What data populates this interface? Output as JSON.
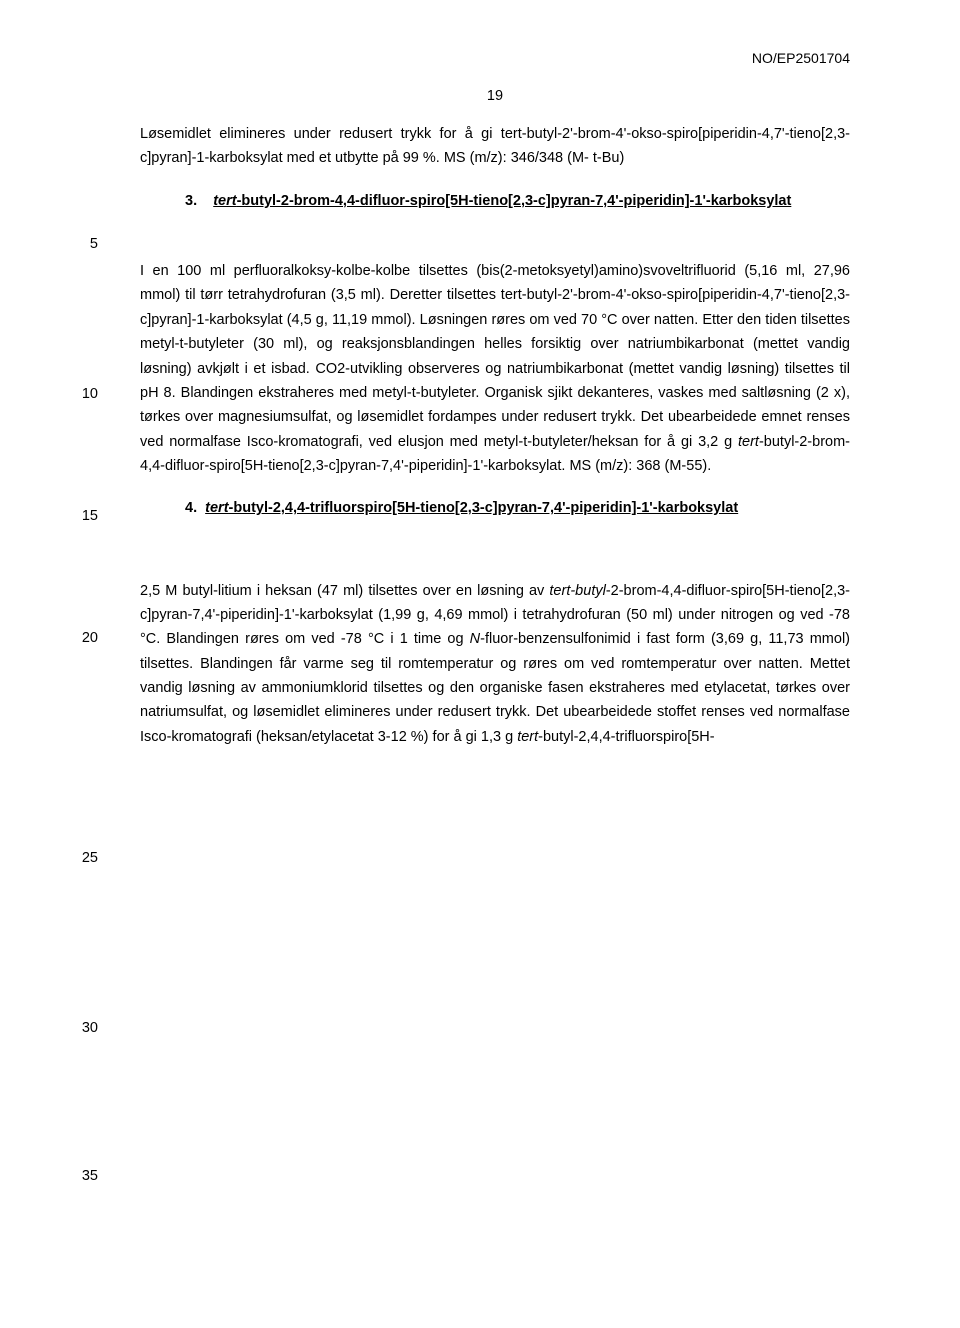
{
  "doc_id": "NO/EP2501704",
  "page_number": "19",
  "line5": "5",
  "line10": "10",
  "line15": "15",
  "line20": "20",
  "line25": "25",
  "line30": "30",
  "line35": "35",
  "p1": "Løsemidlet elimineres under redusert trykk for å gi tert-butyl-2'-brom-4'-okso-spiro[piperidin-4,7'-tieno[2,3-c]pyran]-1-karboksylat med et utbytte på 99 %. MS (m/z): 346/348 (M- t-Bu)",
  "sec3_num": "3.",
  "sec3_title_i": "tert",
  "sec3_title": "-butyl-2-brom-4,4-difluor-spiro[5H-tieno[2,3-c]pyran-7,4'-piperidin]-1'-karboksylat",
  "p2a": "I en 100 ml perfluoralkoksy-kolbe-kolbe tilsettes (bis(2-metoksyetyl)amino)svoveltrifluorid (5,16 ml, 27,96 mmol) til tørr tetrahydrofuran (3,5 ml). Deretter tilsettes tert-butyl-2'-brom-4'-okso-spiro[piperidin-4,7'-tieno[2,3-c]pyran]-1-karboksylat (4,5 g, 11,19 mmol). Løsningen røres om ved 70 °C over natten. Etter den tiden tilsettes metyl-t-butyleter (30 ml), og reaksjonsblandingen helles forsiktig over natriumbikarbonat (mettet vandig løsning) avkjølt i et isbad. CO2-utvikling observeres og natriumbikarbonat (mettet vandig løsning) tilsettes til pH 8. Blandingen ekstraheres med metyl-t-butyleter. Organisk sjikt dekanteres, vaskes med saltløsning (2 x), tørkes over magnesiumsulfat, og løsemidlet fordampes under redusert trykk. Det ubearbeidede emnet renses ved normalfase Isco-kromatografi, ved elusjon med metyl-t-butyleter/heksan for å gi 3,2 g ",
  "p2b_i": "tert",
  "p2b": "-butyl-2-brom-4,4-difluor-spiro[5H-tieno[2,3-c]pyran-7,4'-piperidin]-1'-karboksylat. MS (m/z): 368 (M-55).",
  "sec4_num": "4.",
  "sec4_title_i": "tert",
  "sec4_title": "-butyl-2,4,4-trifluorspiro[5H-tieno[2,3-c]pyran-7,4'-piperidin]-1'-karboksylat",
  "p3a": "2,5 M butyl-litium i heksan (47 ml) tilsettes over en løsning av ",
  "p3a_i": "tert-butyl",
  "p3b": "-2-brom-4,4-difluor-spiro[5H-tieno[2,3-c]pyran-7,4'-piperidin]-1'-karboksylat (1,99 g, 4,69 mmol) i tetrahydrofuran (50 ml) under nitrogen og ved -78 °C. Blandingen røres om ved -78 °C i 1 time og ",
  "p3b_i": "N",
  "p3c": "-fluor-benzensulfonimid i fast form (3,69 g, 11,73 mmol) tilsettes. Blandingen får varme seg til romtemperatur og røres om ved romtemperatur over natten. Mettet vandig løsning av ammoniumklorid tilsettes og den organiske fasen ekstraheres med etylacetat, tørkes over natriumsulfat, og løsemidlet elimineres under redusert trykk. Det ubearbeidede stoffet renses ved normalfase Isco-kromatografi (heksan/etylacetat 3-12 %) for å gi 1,3 g ",
  "p3c_i": "tert",
  "p3d": "-butyl-2,4,4-trifluorspiro[5H-",
  "colors": {
    "text": "#000000",
    "bg": "#ffffff"
  },
  "typography": {
    "body_fontsize_pt": 11,
    "line_height": 1.68,
    "font_family": "Verdana"
  }
}
